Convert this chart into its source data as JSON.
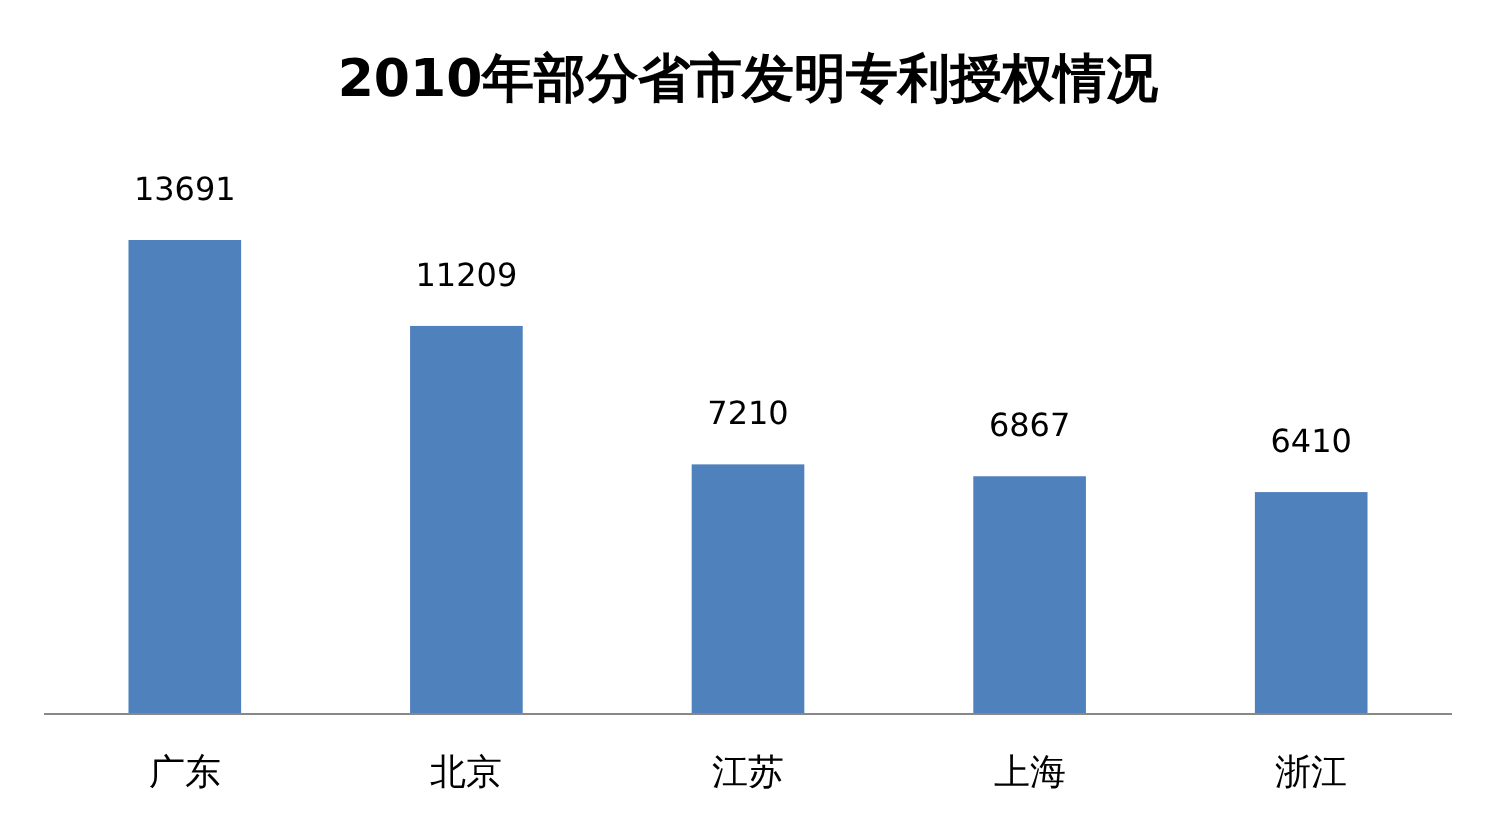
{
  "chart_data": {
    "type": "bar",
    "title": "2010年部分省市发明专利授权情况",
    "categories": [
      "广东",
      "北京",
      "江苏",
      "上海",
      "浙江"
    ],
    "values": [
      13691,
      11209,
      7210,
      6867,
      6410
    ],
    "color": "#4f81bd",
    "data_labels": true
  }
}
